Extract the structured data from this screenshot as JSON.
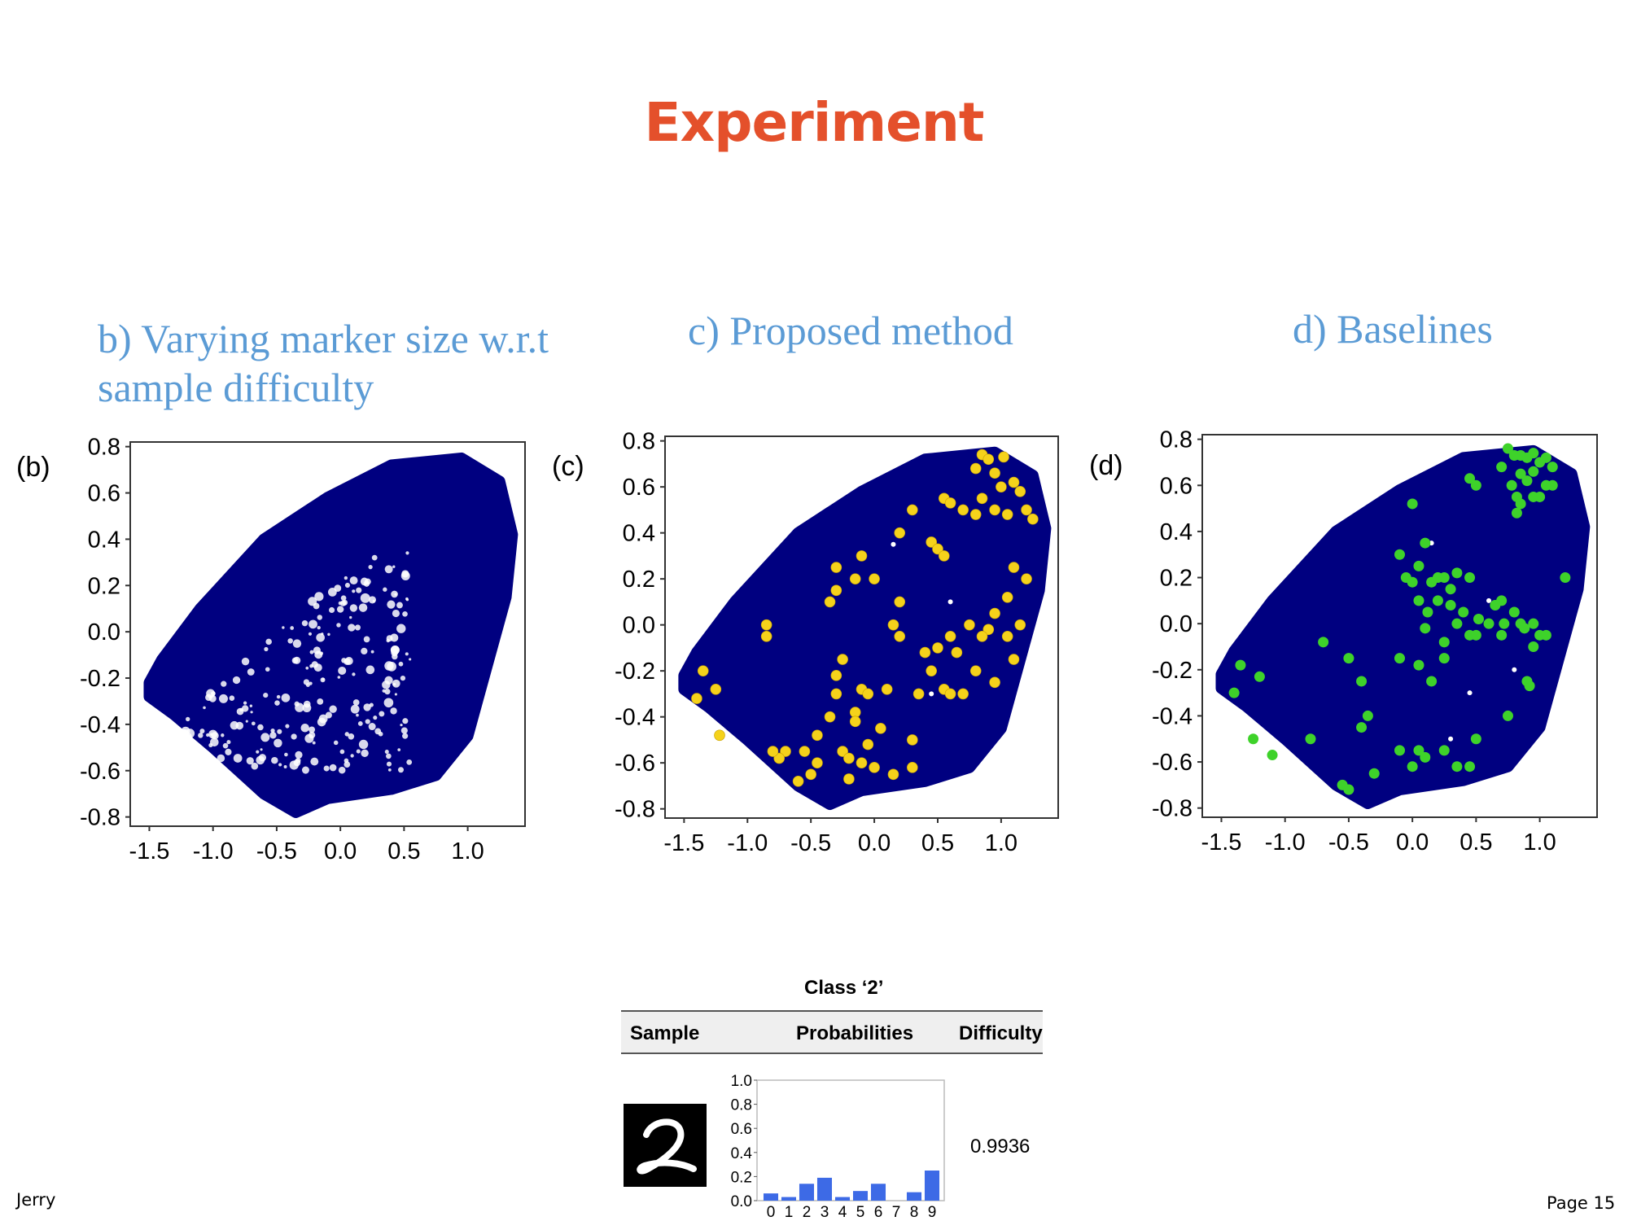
{
  "slide": {
    "title": "Experiment",
    "footer_left": "Jerry",
    "footer_right": "Page 15",
    "accent_color": "#e4502b",
    "caption_color": "#5b9bd5"
  },
  "captions": {
    "b_line1": "b) Varying marker size w.r.t",
    "b_line2": "sample difficulty",
    "c": "c) Proposed method",
    "d": "d) Baselines"
  },
  "chart_data": [
    {
      "type": "scatter",
      "panel_label": "(b)",
      "xlim": [
        -1.65,
        1.45
      ],
      "ylim": [
        -0.84,
        0.82
      ],
      "xticks": [
        -1.5,
        -1.0,
        -0.5,
        0.0,
        0.5,
        1.0
      ],
      "yticks": [
        0.8,
        0.6,
        0.4,
        0.2,
        0.0,
        -0.2,
        -0.4,
        -0.6,
        -0.8
      ],
      "xtick_labels": [
        "-1.5",
        "-1.0",
        "-0.5",
        "0.0",
        "0.5",
        "1.0"
      ],
      "ytick_labels": [
        "0.8",
        "0.6",
        "0.4",
        "0.2",
        "0.0",
        "-0.2",
        "-0.4",
        "-0.6",
        "-0.8"
      ],
      "background_color": "#000080",
      "point_size": "varies with sample difficulty",
      "region_outline": [
        [
          -1.5,
          -0.22
        ],
        [
          -1.4,
          -0.12
        ],
        [
          -1.1,
          0.1
        ],
        [
          -0.6,
          0.4
        ],
        [
          -0.1,
          0.58
        ],
        [
          0.4,
          0.72
        ],
        [
          0.95,
          0.75
        ],
        [
          1.25,
          0.65
        ],
        [
          1.35,
          0.42
        ],
        [
          1.3,
          0.15
        ],
        [
          1.15,
          -0.15
        ],
        [
          1.0,
          -0.45
        ],
        [
          0.75,
          -0.62
        ],
        [
          0.4,
          -0.68
        ],
        [
          -0.1,
          -0.72
        ],
        [
          -0.35,
          -0.78
        ],
        [
          -0.6,
          -0.7
        ],
        [
          -1.0,
          -0.5
        ],
        [
          -1.3,
          -0.36
        ],
        [
          -1.5,
          -0.28
        ]
      ],
      "highlight_points": []
    },
    {
      "type": "scatter",
      "panel_label": "(c)",
      "xlim": [
        -1.65,
        1.45
      ],
      "ylim": [
        -0.84,
        0.82
      ],
      "xticks": [
        -1.5,
        -1.0,
        -0.5,
        0.0,
        0.5,
        1.0
      ],
      "yticks": [
        0.8,
        0.6,
        0.4,
        0.2,
        0.0,
        -0.2,
        -0.4,
        -0.6,
        -0.8
      ],
      "xtick_labels": [
        "-1.5",
        "-1.0",
        "-0.5",
        "0.0",
        "0.5",
        "1.0"
      ],
      "ytick_labels": [
        "0.8",
        "0.6",
        "0.4",
        "0.2",
        "0.0",
        "-0.2",
        "-0.4",
        "-0.6",
        "-0.8"
      ],
      "background_color": "#000080",
      "highlight_color": "#f5d21b",
      "region_outline": [
        [
          -1.5,
          -0.22
        ],
        [
          -1.4,
          -0.12
        ],
        [
          -1.1,
          0.1
        ],
        [
          -0.6,
          0.4
        ],
        [
          -0.1,
          0.58
        ],
        [
          0.4,
          0.72
        ],
        [
          0.95,
          0.75
        ],
        [
          1.25,
          0.65
        ],
        [
          1.35,
          0.42
        ],
        [
          1.3,
          0.15
        ],
        [
          1.15,
          -0.15
        ],
        [
          1.0,
          -0.45
        ],
        [
          0.75,
          -0.62
        ],
        [
          0.4,
          -0.68
        ],
        [
          -0.1,
          -0.72
        ],
        [
          -0.35,
          -0.78
        ],
        [
          -0.6,
          -0.7
        ],
        [
          -1.0,
          -0.5
        ],
        [
          -1.3,
          -0.36
        ],
        [
          -1.5,
          -0.28
        ]
      ],
      "highlight_points": [
        [
          0.85,
          0.74
        ],
        [
          0.9,
          0.72
        ],
        [
          1.02,
          0.73
        ],
        [
          0.8,
          0.68
        ],
        [
          0.95,
          0.66
        ],
        [
          1.1,
          0.62
        ],
        [
          1.0,
          0.6
        ],
        [
          1.15,
          0.58
        ],
        [
          0.55,
          0.55
        ],
        [
          0.6,
          0.53
        ],
        [
          0.85,
          0.55
        ],
        [
          0.95,
          0.5
        ],
        [
          1.05,
          0.48
        ],
        [
          0.7,
          0.5
        ],
        [
          0.8,
          0.48
        ],
        [
          1.2,
          0.5
        ],
        [
          1.25,
          0.46
        ],
        [
          0.3,
          0.5
        ],
        [
          0.2,
          0.4
        ],
        [
          0.45,
          0.36
        ],
        [
          0.5,
          0.33
        ],
        [
          0.55,
          0.3
        ],
        [
          -0.1,
          0.3
        ],
        [
          -0.3,
          0.25
        ],
        [
          -0.15,
          0.2
        ],
        [
          -0.3,
          0.15
        ],
        [
          -0.35,
          0.1
        ],
        [
          0.0,
          0.2
        ],
        [
          0.2,
          0.1
        ],
        [
          0.15,
          0.0
        ],
        [
          0.2,
          -0.05
        ],
        [
          1.1,
          0.25
        ],
        [
          1.2,
          0.2
        ],
        [
          1.05,
          0.12
        ],
        [
          1.15,
          0.0
        ],
        [
          0.95,
          0.05
        ],
        [
          0.9,
          -0.02
        ],
        [
          0.85,
          -0.05
        ],
        [
          0.6,
          -0.05
        ],
        [
          0.65,
          -0.12
        ],
        [
          0.4,
          -0.12
        ],
        [
          0.5,
          -0.1
        ],
        [
          0.75,
          0.0
        ],
        [
          1.05,
          -0.05
        ],
        [
          0.8,
          -0.2
        ],
        [
          0.95,
          -0.25
        ],
        [
          1.1,
          -0.15
        ],
        [
          0.45,
          -0.2
        ],
        [
          0.55,
          -0.28
        ],
        [
          0.6,
          -0.3
        ],
        [
          0.7,
          -0.3
        ],
        [
          0.35,
          -0.3
        ],
        [
          -0.25,
          -0.15
        ],
        [
          -0.3,
          -0.22
        ],
        [
          -0.3,
          -0.3
        ],
        [
          -1.35,
          -0.2
        ],
        [
          -1.25,
          -0.28
        ],
        [
          -1.4,
          -0.32
        ],
        [
          -1.22,
          -0.48
        ],
        [
          -0.85,
          -0.05
        ],
        [
          -0.85,
          0.0
        ],
        [
          -0.1,
          -0.28
        ],
        [
          -0.05,
          -0.3
        ],
        [
          -0.15,
          -0.38
        ],
        [
          -0.35,
          -0.4
        ],
        [
          0.1,
          -0.28
        ],
        [
          -0.15,
          -0.42
        ],
        [
          -0.45,
          -0.48
        ],
        [
          0.05,
          -0.45
        ],
        [
          -0.05,
          -0.52
        ],
        [
          0.3,
          -0.5
        ],
        [
          -0.7,
          -0.55
        ],
        [
          -0.75,
          -0.58
        ],
        [
          -0.8,
          -0.55
        ],
        [
          -0.55,
          -0.55
        ],
        [
          -0.45,
          -0.6
        ],
        [
          -0.25,
          -0.55
        ],
        [
          -0.2,
          -0.58
        ],
        [
          0.0,
          -0.62
        ],
        [
          -0.1,
          -0.6
        ],
        [
          0.15,
          -0.65
        ],
        [
          -0.5,
          -0.65
        ],
        [
          -0.6,
          -0.68
        ],
        [
          0.3,
          -0.62
        ],
        [
          -0.2,
          -0.67
        ]
      ]
    },
    {
      "type": "scatter",
      "panel_label": "(d)",
      "xlim": [
        -1.65,
        1.45
      ],
      "ylim": [
        -0.84,
        0.82
      ],
      "xticks": [
        -1.5,
        -1.0,
        -0.5,
        0.0,
        0.5,
        1.0
      ],
      "yticks": [
        0.8,
        0.6,
        0.4,
        0.2,
        0.0,
        -0.2,
        -0.4,
        -0.6,
        -0.8
      ],
      "xtick_labels": [
        "-1.5",
        "-1.0",
        "-0.5",
        "0.0",
        "0.5",
        "1.0"
      ],
      "ytick_labels": [
        "0.8",
        "0.6",
        "0.4",
        "0.2",
        "0.0",
        "-0.2",
        "-0.4",
        "-0.6",
        "-0.8"
      ],
      "background_color": "#000080",
      "highlight_color": "#3ed22a",
      "region_outline": [
        [
          -1.5,
          -0.22
        ],
        [
          -1.4,
          -0.12
        ],
        [
          -1.1,
          0.1
        ],
        [
          -0.6,
          0.4
        ],
        [
          -0.1,
          0.58
        ],
        [
          0.4,
          0.72
        ],
        [
          0.95,
          0.75
        ],
        [
          1.25,
          0.65
        ],
        [
          1.35,
          0.42
        ],
        [
          1.3,
          0.15
        ],
        [
          1.15,
          -0.15
        ],
        [
          1.0,
          -0.45
        ],
        [
          0.75,
          -0.62
        ],
        [
          0.4,
          -0.68
        ],
        [
          -0.1,
          -0.72
        ],
        [
          -0.35,
          -0.78
        ],
        [
          -0.6,
          -0.7
        ],
        [
          -1.0,
          -0.5
        ],
        [
          -1.3,
          -0.36
        ],
        [
          -1.5,
          -0.28
        ]
      ],
      "highlight_points": [
        [
          0.75,
          0.76
        ],
        [
          0.8,
          0.73
        ],
        [
          0.85,
          0.73
        ],
        [
          0.9,
          0.72
        ],
        [
          0.95,
          0.74
        ],
        [
          1.0,
          0.7
        ],
        [
          1.05,
          0.72
        ],
        [
          1.1,
          0.68
        ],
        [
          0.7,
          0.68
        ],
        [
          0.85,
          0.65
        ],
        [
          0.9,
          0.62
        ],
        [
          0.95,
          0.66
        ],
        [
          1.05,
          0.6
        ],
        [
          1.1,
          0.6
        ],
        [
          0.45,
          0.63
        ],
        [
          0.5,
          0.6
        ],
        [
          0.78,
          0.6
        ],
        [
          0.82,
          0.55
        ],
        [
          0.85,
          0.52
        ],
        [
          0.95,
          0.55
        ],
        [
          1.0,
          0.55
        ],
        [
          0.82,
          0.48
        ],
        [
          0.0,
          0.52
        ],
        [
          -0.1,
          0.3
        ],
        [
          0.1,
          0.35
        ],
        [
          -0.05,
          0.2
        ],
        [
          0.0,
          0.18
        ],
        [
          0.05,
          0.25
        ],
        [
          0.15,
          0.18
        ],
        [
          0.2,
          0.2
        ],
        [
          0.25,
          0.2
        ],
        [
          0.3,
          0.15
        ],
        [
          0.35,
          0.22
        ],
        [
          0.45,
          0.2
        ],
        [
          0.2,
          0.1
        ],
        [
          0.05,
          0.1
        ],
        [
          0.12,
          0.05
        ],
        [
          0.1,
          -0.02
        ],
        [
          0.3,
          0.08
        ],
        [
          0.35,
          0.0
        ],
        [
          0.4,
          0.05
        ],
        [
          0.45,
          -0.05
        ],
        [
          0.5,
          -0.05
        ],
        [
          0.52,
          0.02
        ],
        [
          0.25,
          -0.08
        ],
        [
          0.25,
          -0.15
        ],
        [
          0.65,
          0.08
        ],
        [
          0.7,
          0.1
        ],
        [
          0.72,
          0.0
        ],
        [
          0.8,
          0.05
        ],
        [
          0.85,
          0.0
        ],
        [
          0.88,
          -0.02
        ],
        [
          0.95,
          0.0
        ],
        [
          1.0,
          -0.05
        ],
        [
          0.95,
          -0.1
        ],
        [
          1.2,
          0.2
        ],
        [
          1.05,
          -0.05
        ],
        [
          0.7,
          -0.05
        ],
        [
          0.6,
          0.0
        ],
        [
          -0.1,
          -0.15
        ],
        [
          0.05,
          -0.18
        ],
        [
          -0.5,
          -0.15
        ],
        [
          -0.7,
          -0.08
        ],
        [
          -0.4,
          -0.25
        ],
        [
          -0.35,
          -0.4
        ],
        [
          -0.4,
          -0.45
        ],
        [
          -1.35,
          -0.18
        ],
        [
          -1.2,
          -0.23
        ],
        [
          -1.4,
          -0.3
        ],
        [
          -1.25,
          -0.5
        ],
        [
          -1.1,
          -0.57
        ],
        [
          -0.8,
          -0.5
        ],
        [
          -0.55,
          -0.7
        ],
        [
          -0.5,
          -0.72
        ],
        [
          -0.3,
          -0.65
        ],
        [
          -0.1,
          -0.55
        ],
        [
          0.0,
          -0.62
        ],
        [
          0.05,
          -0.55
        ],
        [
          0.1,
          -0.58
        ],
        [
          0.25,
          -0.55
        ],
        [
          0.35,
          -0.62
        ],
        [
          0.45,
          -0.62
        ],
        [
          0.5,
          -0.5
        ],
        [
          0.75,
          -0.4
        ],
        [
          0.9,
          -0.25
        ],
        [
          0.92,
          -0.27
        ],
        [
          0.15,
          -0.25
        ]
      ]
    },
    {
      "type": "bar",
      "title": "Class ‘2’",
      "categories": [
        "0",
        "1",
        "2",
        "3",
        "4",
        "5",
        "6",
        "7",
        "8",
        "9"
      ],
      "values": [
        0.06,
        0.03,
        0.14,
        0.19,
        0.03,
        0.08,
        0.14,
        0.0,
        0.07,
        0.25
      ],
      "ylim": [
        0.0,
        1.0
      ],
      "yticks": [
        1.0,
        0.8,
        0.6,
        0.4,
        0.2,
        0.0
      ],
      "ytick_labels": [
        "1.0",
        "0.8",
        "0.6",
        "0.4",
        "0.2",
        "0.0"
      ],
      "bar_color": "#3d6ae6"
    }
  ],
  "table": {
    "title": "Class ‘2’",
    "headers": [
      "Sample",
      "Probabilities",
      "Difficulty"
    ],
    "difficulty": "0.9936",
    "sample_digit": "2"
  }
}
